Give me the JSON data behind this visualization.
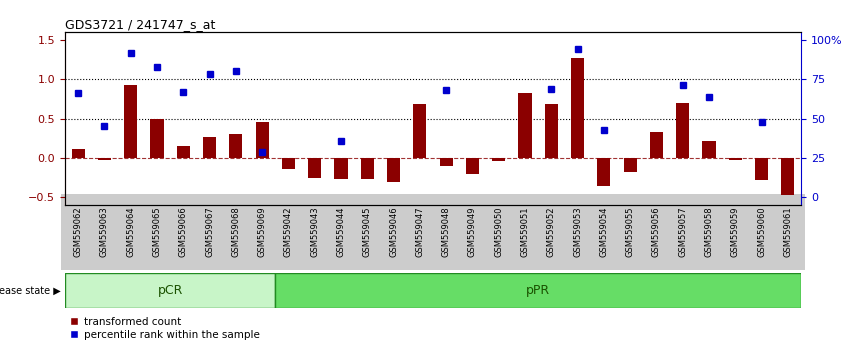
{
  "title": "GDS3721 / 241747_s_at",
  "samples": [
    "GSM559062",
    "GSM559063",
    "GSM559064",
    "GSM559065",
    "GSM559066",
    "GSM559067",
    "GSM559068",
    "GSM559069",
    "GSM559042",
    "GSM559043",
    "GSM559044",
    "GSM559045",
    "GSM559046",
    "GSM559047",
    "GSM559048",
    "GSM559049",
    "GSM559050",
    "GSM559051",
    "GSM559052",
    "GSM559053",
    "GSM559054",
    "GSM559055",
    "GSM559056",
    "GSM559057",
    "GSM559058",
    "GSM559059",
    "GSM559060",
    "GSM559061"
  ],
  "transformed_count": [
    0.12,
    -0.02,
    0.93,
    0.5,
    0.15,
    0.27,
    0.3,
    0.46,
    -0.14,
    -0.25,
    -0.27,
    -0.27,
    -0.3,
    0.68,
    -0.1,
    -0.2,
    -0.04,
    0.83,
    0.68,
    1.27,
    -0.35,
    -0.18,
    0.33,
    0.7,
    0.22,
    -0.02,
    -0.28,
    -0.47
  ],
  "percentile_rank": [
    0.83,
    0.41,
    1.33,
    1.15,
    0.84,
    1.06,
    1.1,
    0.08,
    null,
    null,
    0.22,
    null,
    null,
    null,
    0.86,
    null,
    null,
    null,
    0.88,
    1.38,
    0.35,
    null,
    null,
    0.92,
    0.78,
    null,
    0.46,
    null
  ],
  "pcr_count": 8,
  "bar_color": "#8B0000",
  "dot_color": "#0000CD",
  "ylim": [
    -0.6,
    1.6
  ],
  "y_left_ticks": [
    -0.5,
    0.0,
    0.5,
    1.0,
    1.5
  ],
  "y_right_ticks": [
    0,
    25,
    50,
    75,
    100
  ],
  "hline_0": 0.0,
  "hline_05": 0.5,
  "hline_1": 1.0,
  "pcr_color": "#c8f5c8",
  "ppr_color": "#66dd66",
  "group_edge_color": "#228B22",
  "background_color": "#ffffff",
  "tick_bg_color": "#cccccc"
}
